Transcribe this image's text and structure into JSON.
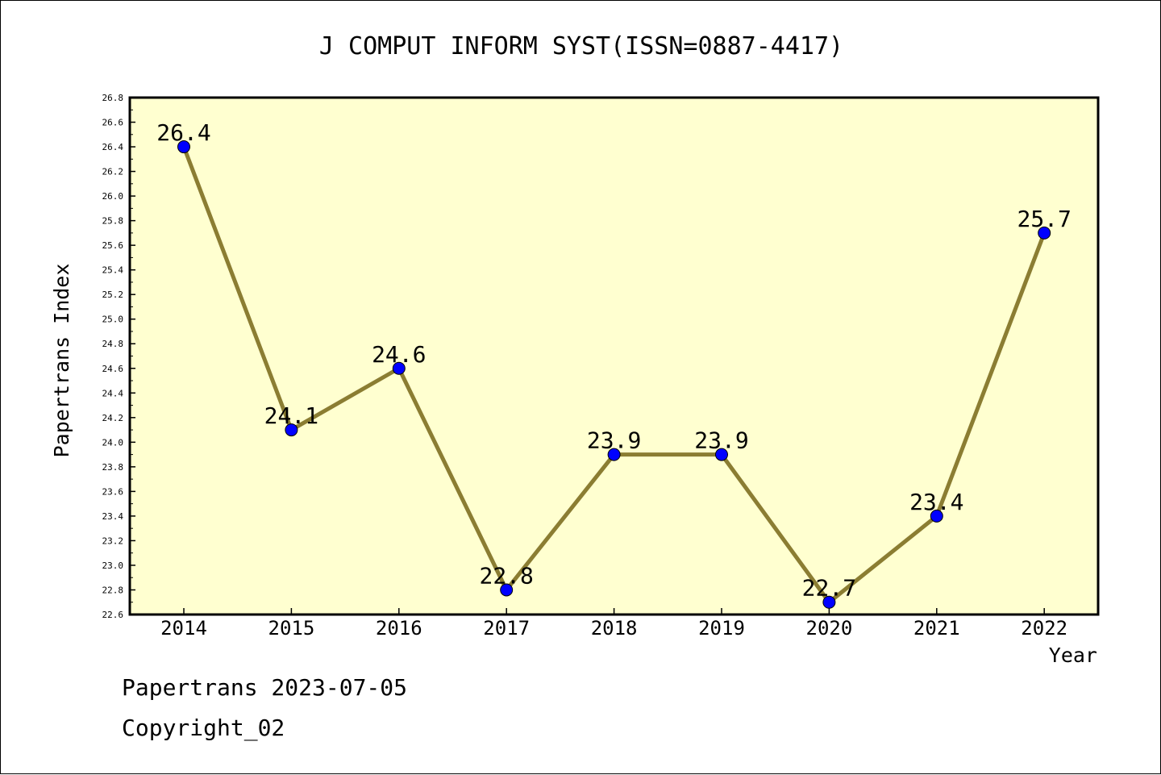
{
  "chart_data": {
    "type": "line",
    "title": "J COMPUT INFORM SYST(ISSN=0887-4417)",
    "xlabel": "Year",
    "ylabel": "Papertrans Index",
    "categories": [
      "2014",
      "2015",
      "2016",
      "2017",
      "2018",
      "2019",
      "2020",
      "2021",
      "2022"
    ],
    "series": [
      {
        "values": [
          26.4,
          24.1,
          24.6,
          22.8,
          23.9,
          23.9,
          22.7,
          23.4,
          25.7
        ]
      }
    ],
    "data_labels": [
      "26.4",
      "24.1",
      "24.6",
      "22.8",
      "23.9",
      "23.9",
      "22.7",
      "23.4",
      "25.7"
    ],
    "ylim": [
      22.6,
      26.8
    ],
    "yticks": [
      "22.6",
      "22.8",
      "23.0",
      "23.2",
      "23.4",
      "23.6",
      "23.8",
      "24.0",
      "24.2",
      "24.4",
      "24.6",
      "24.8",
      "25.0",
      "25.2",
      "25.4",
      "25.6",
      "25.8",
      "26.0",
      "26.2",
      "26.4",
      "26.6",
      "26.8"
    ],
    "grid": false,
    "colors": {
      "plot_background": "#ffffd0",
      "line": "#8b7d32",
      "marker": "#0000ff"
    }
  },
  "footer": {
    "date_line": "Papertrans 2023-07-05",
    "copyright": "Copyright_02"
  }
}
